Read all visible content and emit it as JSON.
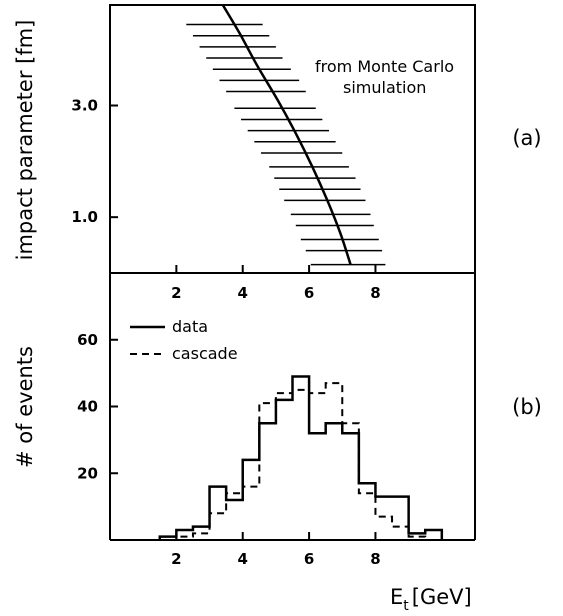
{
  "chart_data": [
    {
      "type": "line",
      "panel_label": "(a)",
      "ylabel": "impact parameter [fm]",
      "annotation_lines": [
        "from Monte Carlo",
        "simulation"
      ],
      "ylim": [
        0,
        4.8
      ],
      "xlim": [
        0,
        11
      ],
      "y_ticks": [
        1.0,
        3.0
      ],
      "y_tick_labels": [
        "1.0",
        "3.0"
      ],
      "curve": {
        "x": [
          3.4,
          3.9,
          4.45,
          5.05,
          5.6,
          6.1,
          6.55,
          6.95,
          7.25
        ],
        "y": [
          4.8,
          4.3,
          3.7,
          3.1,
          2.5,
          1.9,
          1.3,
          0.7,
          0.15
        ]
      },
      "error_bars": [
        {
          "y": 4.45,
          "xmin": 2.3,
          "xmax": 4.6
        },
        {
          "y": 4.25,
          "xmin": 2.5,
          "xmax": 4.8
        },
        {
          "y": 4.05,
          "xmin": 2.7,
          "xmax": 5.0
        },
        {
          "y": 3.85,
          "xmin": 2.9,
          "xmax": 5.2
        },
        {
          "y": 3.65,
          "xmin": 3.1,
          "xmax": 5.45
        },
        {
          "y": 3.45,
          "xmin": 3.3,
          "xmax": 5.7
        },
        {
          "y": 3.25,
          "xmin": 3.5,
          "xmax": 5.9
        },
        {
          "y": 2.95,
          "xmin": 3.75,
          "xmax": 6.2
        },
        {
          "y": 2.75,
          "xmin": 3.95,
          "xmax": 6.4
        },
        {
          "y": 2.55,
          "xmin": 4.15,
          "xmax": 6.6
        },
        {
          "y": 2.35,
          "xmin": 4.35,
          "xmax": 6.8
        },
        {
          "y": 2.15,
          "xmin": 4.55,
          "xmax": 7.0
        },
        {
          "y": 1.9,
          "xmin": 4.8,
          "xmax": 7.2
        },
        {
          "y": 1.7,
          "xmin": 4.95,
          "xmax": 7.4
        },
        {
          "y": 1.5,
          "xmin": 5.1,
          "xmax": 7.55
        },
        {
          "y": 1.3,
          "xmin": 5.25,
          "xmax": 7.7
        },
        {
          "y": 1.05,
          "xmin": 5.45,
          "xmax": 7.85
        },
        {
          "y": 0.85,
          "xmin": 5.6,
          "xmax": 7.95
        },
        {
          "y": 0.6,
          "xmin": 5.75,
          "xmax": 8.1
        },
        {
          "y": 0.4,
          "xmin": 5.9,
          "xmax": 8.2
        },
        {
          "y": 0.15,
          "xmin": 6.05,
          "xmax": 8.3
        }
      ]
    },
    {
      "type": "line",
      "panel_label": "(b)",
      "xlabel": "E",
      "xlabel_sub": "t",
      "xlabel_unit": "[GeV]",
      "ylabel": "# of events",
      "xlim": [
        0,
        11
      ],
      "ylim": [
        0,
        80
      ],
      "x_ticks": [
        2,
        4,
        6,
        8
      ],
      "x_tick_labels": [
        "2",
        "4",
        "6",
        "8"
      ],
      "y_ticks": [
        20,
        40,
        60
      ],
      "y_tick_labels": [
        "20",
        "40",
        "60"
      ],
      "bin_edges": [
        1.5,
        2.0,
        2.5,
        3.0,
        3.5,
        4.0,
        4.5,
        5.0,
        5.5,
        6.0,
        6.5,
        7.0,
        7.5,
        8.0,
        8.5,
        9.0,
        9.5,
        10.0
      ],
      "series": [
        {
          "name": "data",
          "style": "solid",
          "values": [
            1,
            3,
            4,
            16,
            12,
            24,
            35,
            42,
            49,
            32,
            35,
            32,
            17,
            13,
            13,
            2,
            3
          ]
        },
        {
          "name": "cascade",
          "style": "dashed",
          "values": [
            0,
            1,
            2,
            8,
            14,
            16,
            41,
            44,
            45,
            44,
            47,
            35,
            14,
            7,
            4,
            1,
            0
          ]
        }
      ]
    }
  ]
}
